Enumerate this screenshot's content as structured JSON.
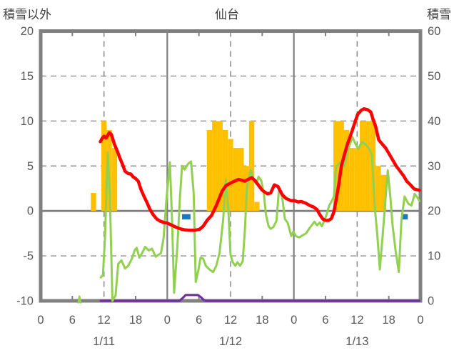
{
  "titles": {
    "left": "積雪以外",
    "center": "仙台",
    "right": "積雪"
  },
  "colors": {
    "bar": "#FFC000",
    "red": "#FF0000",
    "green": "#92D050",
    "purple": "#7030A0",
    "blue": "#2076BC",
    "frame": "#808080",
    "grid": "#909090",
    "tick_text": "#595959",
    "title_text": "#3F3F3F"
  },
  "chart_data": {
    "type": "bar+line",
    "title": "仙台",
    "left_axis": {
      "label": "積雪以外",
      "max": 20,
      "min": -10,
      "ticks": [
        "20",
        "15",
        "10",
        "5",
        "0",
        "-5",
        "-10"
      ],
      "tick_values": [
        20,
        15,
        10,
        5,
        0,
        -5,
        -10
      ]
    },
    "right_axis": {
      "label": "積雪",
      "max": 60,
      "min": 0,
      "ticks": [
        "60",
        "50",
        "40",
        "30",
        "20",
        "10",
        "0"
      ],
      "tick_values": [
        60,
        50,
        40,
        30,
        20,
        10,
        0
      ]
    },
    "x_axis": {
      "hours_total": 72,
      "tick_step": 6,
      "hour_labels": [
        "0",
        "6",
        "12",
        "18",
        "0",
        "6",
        "12",
        "18",
        "0",
        "6",
        "12",
        "18",
        "0"
      ],
      "date_labels": [
        {
          "label": "1/11",
          "hour": 12
        },
        {
          "label": "1/12",
          "hour": 36
        },
        {
          "label": "1/13",
          "hour": 60
        }
      ]
    },
    "grid": {
      "h_dashed_left": [
        15,
        10,
        5,
        -5
      ],
      "h_zero": 0,
      "v_dashed_hours": [
        12,
        36,
        60
      ],
      "v_solid_hours": [
        24,
        48
      ],
      "edge_tick_hours": [
        6,
        18,
        30,
        42,
        54,
        66
      ]
    },
    "series": [
      {
        "name": "precip-bars",
        "type": "bar",
        "axis": "left",
        "color": "#FFC000",
        "points": [
          [
            10,
            2
          ],
          [
            12,
            10
          ],
          [
            13,
            9
          ],
          [
            14,
            7
          ],
          [
            32,
            9
          ],
          [
            33,
            10
          ],
          [
            34,
            10
          ],
          [
            35,
            9
          ],
          [
            36,
            8
          ],
          [
            37,
            7
          ],
          [
            38,
            7
          ],
          [
            39,
            5
          ],
          [
            40,
            10
          ],
          [
            41,
            1
          ],
          [
            56,
            10
          ],
          [
            57,
            10
          ],
          [
            58,
            9
          ],
          [
            59,
            7
          ],
          [
            60,
            7
          ],
          [
            61,
            10
          ],
          [
            62,
            10
          ],
          [
            63,
            10
          ],
          [
            64,
            5
          ],
          [
            65,
            4
          ]
        ]
      },
      {
        "name": "purple-line",
        "type": "line",
        "axis": "right",
        "color": "#7030A0",
        "width": 3.2,
        "points": [
          [
            11.4,
            0
          ],
          [
            26.3,
            0
          ],
          [
            26.9,
            0.6
          ],
          [
            27.5,
            1.3
          ],
          [
            29.8,
            1.3
          ],
          [
            30.4,
            0.8
          ],
          [
            30.9,
            0.2
          ],
          [
            31.4,
            0
          ],
          [
            71.8,
            0
          ]
        ]
      },
      {
        "name": "green-blip",
        "type": "line",
        "axis": "left",
        "color": "#92D050",
        "width": 2.6,
        "points": [
          [
            7.1,
            -10.3
          ],
          [
            7.35,
            -9.5
          ],
          [
            7.6,
            -10.3
          ]
        ]
      },
      {
        "name": "green-line",
        "type": "line",
        "axis": "left",
        "color": "#92D050",
        "width": 3,
        "points": [
          [
            11.4,
            -7.4
          ],
          [
            11.8,
            -7.1
          ],
          [
            12.2,
            -3.0
          ],
          [
            12.7,
            6.5
          ],
          [
            13.1,
            2.0
          ],
          [
            13.6,
            -10.0
          ],
          [
            14.2,
            -9.4
          ],
          [
            14.7,
            -5.9
          ],
          [
            15.3,
            -5.5
          ],
          [
            16.0,
            -6.4
          ],
          [
            16.6,
            -6.1
          ],
          [
            17.3,
            -5.3
          ],
          [
            17.8,
            -4.4
          ],
          [
            18.2,
            -4.1
          ],
          [
            18.7,
            -5.2
          ],
          [
            19.3,
            -4.6
          ],
          [
            19.8,
            -4.0
          ],
          [
            20.5,
            -4.4
          ],
          [
            21.1,
            -4.2
          ],
          [
            21.8,
            -5.1
          ],
          [
            22.3,
            -4.9
          ],
          [
            22.8,
            -4.7
          ],
          [
            23.3,
            -3.0
          ],
          [
            23.8,
            1.0
          ],
          [
            24.5,
            5.4
          ],
          [
            24.9,
            -1.0
          ],
          [
            25.3,
            -9.1
          ],
          [
            25.9,
            -4.0
          ],
          [
            26.4,
            1.5
          ],
          [
            26.8,
            5.0
          ],
          [
            27.3,
            4.6
          ],
          [
            27.9,
            5.2
          ],
          [
            28.5,
            5.5
          ],
          [
            29.0,
            2.0
          ],
          [
            29.4,
            -7.9
          ],
          [
            29.9,
            -6.6
          ],
          [
            30.3,
            -5.2
          ],
          [
            30.8,
            -5.3
          ],
          [
            31.3,
            -6.1
          ],
          [
            31.8,
            -6.4
          ],
          [
            32.2,
            -6.6
          ],
          [
            32.7,
            -6.8
          ],
          [
            33.3,
            -6.1
          ],
          [
            33.9,
            -4.7
          ],
          [
            34.6,
            -0.9
          ],
          [
            35.1,
            3.5
          ],
          [
            35.6,
            -0.1
          ],
          [
            36.0,
            -4.9
          ],
          [
            36.4,
            -5.7
          ],
          [
            36.9,
            -6.1
          ],
          [
            37.3,
            -5.7
          ],
          [
            37.8,
            -6.1
          ],
          [
            38.3,
            -5.6
          ],
          [
            38.7,
            -2.2
          ],
          [
            39.1,
            2.6
          ],
          [
            39.8,
            4.6
          ],
          [
            40.4,
            3.4
          ],
          [
            40.9,
            3.0
          ],
          [
            41.3,
            3.8
          ],
          [
            41.8,
            3.4
          ],
          [
            42.3,
            2.0
          ],
          [
            42.7,
            -0.4
          ],
          [
            43.2,
            -1.7
          ],
          [
            43.6,
            -2.0
          ],
          [
            44.1,
            -1.8
          ],
          [
            44.7,
            -1.1
          ],
          [
            45.2,
            2.6
          ],
          [
            45.8,
            1.5
          ],
          [
            46.3,
            -0.9
          ],
          [
            46.8,
            -1.3
          ],
          [
            47.1,
            -1.9
          ],
          [
            47.5,
            -2.8
          ],
          [
            47.9,
            -2.3
          ],
          [
            48.4,
            -2.8
          ],
          [
            49.0,
            -2.95
          ],
          [
            49.7,
            -2.7
          ],
          [
            50.3,
            -2.5
          ],
          [
            51.0,
            -1.9
          ],
          [
            51.9,
            -1.2
          ],
          [
            52.4,
            -1.6
          ],
          [
            52.9,
            -1.3
          ],
          [
            53.3,
            -1.7
          ],
          [
            53.8,
            -1.05
          ],
          [
            54.2,
            -0.4
          ],
          [
            54.7,
            0.6
          ],
          [
            55.1,
            1.0
          ],
          [
            55.6,
            1.6
          ],
          [
            56.0,
            4.9
          ],
          [
            56.6,
            5.3
          ],
          [
            57.1,
            5.4
          ],
          [
            57.6,
            5.0
          ],
          [
            58.2,
            6.7
          ],
          [
            59.1,
            8.2
          ],
          [
            59.8,
            7.3
          ],
          [
            60.2,
            6.9
          ],
          [
            60.9,
            7.7
          ],
          [
            61.6,
            7.4
          ],
          [
            62.3,
            6.9
          ],
          [
            62.8,
            6.2
          ],
          [
            63.4,
            0.0
          ],
          [
            63.8,
            -2.5
          ],
          [
            64.3,
            -6.5
          ],
          [
            65.0,
            -1.5
          ],
          [
            65.8,
            4.5
          ],
          [
            66.3,
            1.5
          ],
          [
            66.7,
            -1.5
          ],
          [
            67.3,
            -4.5
          ],
          [
            67.9,
            -6.8
          ],
          [
            68.4,
            -1.0
          ],
          [
            69.0,
            1.6
          ],
          [
            69.7,
            0.8
          ],
          [
            70.3,
            0.6
          ],
          [
            70.9,
            1.9
          ],
          [
            71.4,
            1.5
          ],
          [
            71.8,
            1.1
          ]
        ]
      },
      {
        "name": "red-line",
        "type": "line",
        "axis": "left",
        "color": "#FF0000",
        "width": 4.5,
        "points": [
          [
            11.3,
            7.7
          ],
          [
            11.7,
            8.1
          ],
          [
            12.0,
            8.3
          ],
          [
            12.4,
            8.1
          ],
          [
            13.0,
            8.7
          ],
          [
            13.4,
            8.5
          ],
          [
            14.0,
            7.4
          ],
          [
            14.5,
            6.7
          ],
          [
            15.0,
            5.9
          ],
          [
            15.5,
            5.2
          ],
          [
            16.0,
            4.4
          ],
          [
            16.6,
            4.15
          ],
          [
            17.1,
            4.1
          ],
          [
            17.5,
            3.8
          ],
          [
            18.0,
            3.6
          ],
          [
            18.5,
            3.3
          ],
          [
            19.0,
            2.4
          ],
          [
            19.6,
            1.6
          ],
          [
            20.1,
            1.0
          ],
          [
            20.7,
            0.2
          ],
          [
            21.3,
            -0.4
          ],
          [
            22.0,
            -0.9
          ],
          [
            22.7,
            -1.15
          ],
          [
            23.4,
            -1.3
          ],
          [
            24.0,
            -1.35
          ],
          [
            24.9,
            -1.6
          ],
          [
            25.6,
            -1.8
          ],
          [
            26.5,
            -2.0
          ],
          [
            27.2,
            -2.1
          ],
          [
            28.2,
            -2.15
          ],
          [
            29.2,
            -2.15
          ],
          [
            30.1,
            -2.05
          ],
          [
            30.8,
            -1.7
          ],
          [
            31.6,
            -1.0
          ],
          [
            32.4,
            -0.5
          ],
          [
            33.3,
            0.6
          ],
          [
            34.4,
            2.2
          ],
          [
            35.1,
            2.8
          ],
          [
            36.0,
            3.1
          ],
          [
            36.5,
            3.25
          ],
          [
            37.5,
            3.5
          ],
          [
            38.2,
            3.4
          ],
          [
            38.7,
            3.3
          ],
          [
            39.3,
            3.5
          ],
          [
            40.0,
            3.7
          ],
          [
            40.6,
            3.4
          ],
          [
            41.1,
            3.0
          ],
          [
            42.0,
            2.3
          ],
          [
            43.0,
            1.9
          ],
          [
            43.6,
            2.0
          ],
          [
            44.3,
            2.9
          ],
          [
            45.0,
            2.7
          ],
          [
            45.8,
            1.8
          ],
          [
            46.5,
            1.4
          ],
          [
            47.4,
            1.15
          ],
          [
            48.1,
            1.15
          ],
          [
            48.8,
            1.0
          ],
          [
            49.4,
            1.05
          ],
          [
            50.3,
            0.85
          ],
          [
            51.0,
            0.6
          ],
          [
            51.7,
            0.45
          ],
          [
            52.4,
            0.15
          ],
          [
            52.9,
            -0.4
          ],
          [
            53.5,
            -0.9
          ],
          [
            54.0,
            -1.05
          ],
          [
            54.6,
            -1.05
          ],
          [
            55.1,
            -0.85
          ],
          [
            55.6,
            -0.1
          ],
          [
            56.0,
            1.2
          ],
          [
            56.5,
            2.9
          ],
          [
            57.0,
            5.0
          ],
          [
            57.6,
            6.3
          ],
          [
            58.2,
            7.5
          ],
          [
            58.7,
            8.3
          ],
          [
            59.1,
            9.0
          ],
          [
            59.6,
            9.9
          ],
          [
            60.1,
            10.75
          ],
          [
            60.8,
            11.2
          ],
          [
            61.3,
            11.35
          ],
          [
            62.0,
            11.25
          ],
          [
            62.6,
            11.0
          ],
          [
            63.0,
            10.2
          ],
          [
            63.5,
            9.4
          ],
          [
            64.1,
            7.9
          ],
          [
            64.8,
            7.4
          ],
          [
            65.4,
            7.0
          ],
          [
            66.0,
            6.4
          ],
          [
            66.7,
            5.7
          ],
          [
            67.4,
            5.0
          ],
          [
            68.1,
            4.45
          ],
          [
            68.8,
            3.9
          ],
          [
            69.4,
            3.3
          ],
          [
            70.1,
            2.9
          ],
          [
            70.8,
            2.45
          ],
          [
            71.4,
            2.35
          ],
          [
            71.8,
            2.3
          ]
        ]
      }
    ],
    "markers": [
      {
        "name": "blue-mark",
        "color": "#2076BC",
        "h1": 26.8,
        "h2": 28.4,
        "v1": -0.35,
        "v2": -0.95
      },
      {
        "name": "blue-mark",
        "color": "#2076BC",
        "h1": 68.5,
        "h2": 69.6,
        "v1": -0.35,
        "v2": -0.95
      }
    ]
  }
}
